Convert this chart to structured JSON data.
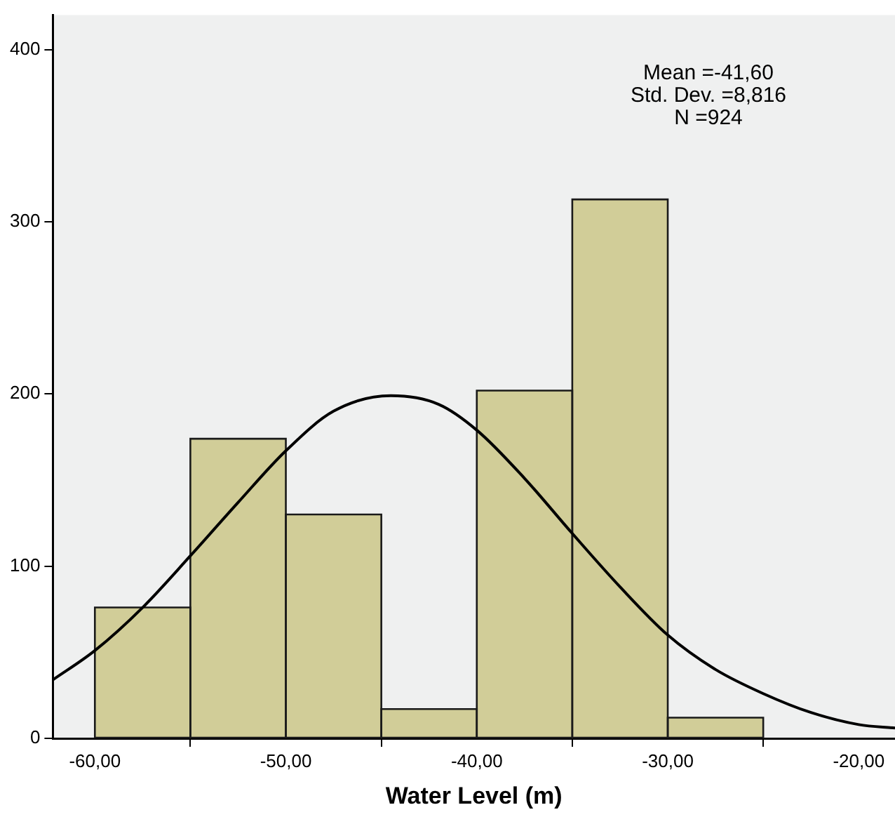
{
  "chart_data": {
    "type": "histogram",
    "xlabel": "Water Level (m)",
    "bins": [
      -60,
      -55,
      -50,
      -45,
      -40,
      -35,
      -30,
      -25
    ],
    "values": [
      76,
      174,
      130,
      17,
      202,
      313,
      12
    ],
    "color": "#d1cd98",
    "series": [
      {
        "type": "line",
        "color": "#000000",
        "x": [
          -62.2,
          -60,
          -57.5,
          -55,
          -52.5,
          -50,
          -47.5,
          -44.5,
          -42,
          -40,
          -37.5,
          -35,
          -32.5,
          -30,
          -27.5,
          -25,
          -22.5,
          -20,
          -18.1
        ],
        "values": [
          34,
          51,
          76,
          106,
          137,
          167,
          190,
          199,
          194,
          179,
          151,
          119,
          88,
          60,
          40,
          26,
          15,
          8,
          6
        ]
      }
    ],
    "xlim": [
      -62.2,
      -18.1
    ],
    "ylim": [
      0,
      420
    ],
    "xticks": [
      {
        "value": -60,
        "label": "-60,00"
      },
      {
        "value": -50,
        "label": "-50,00"
      },
      {
        "value": -40,
        "label": "-40,00"
      },
      {
        "value": -30,
        "label": "-30,00"
      },
      {
        "value": -20,
        "label": "-20,00"
      }
    ],
    "yticks": [
      0,
      100,
      200,
      300,
      400
    ],
    "annotations": [
      "Mean =-41,60",
      "Std. Dev. =8,816",
      "N =924"
    ],
    "grid": false,
    "legend": false
  }
}
